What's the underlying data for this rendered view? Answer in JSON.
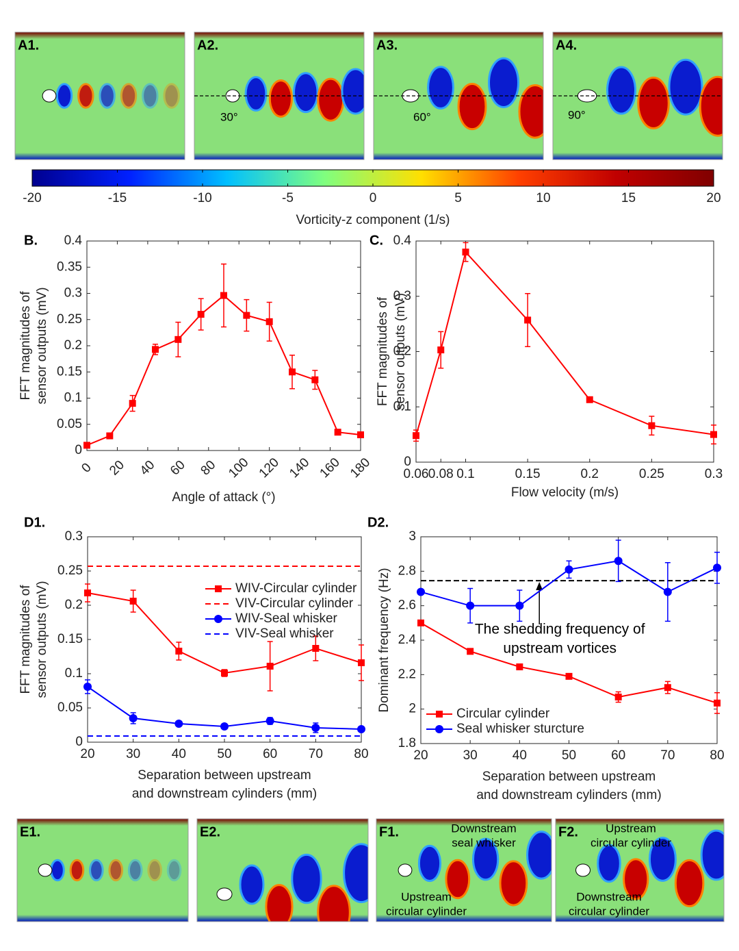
{
  "chart_data": [
    {
      "type": "colorbar",
      "xlim": [
        -20,
        20
      ],
      "xticks": [
        -20,
        -15,
        -10,
        -5,
        0,
        5,
        10,
        15,
        20
      ],
      "xlabel": "Vorticity-z component (1/s)",
      "colors": [
        "#00008f",
        "#0020ff",
        "#00bfff",
        "#7fff7f",
        "#ffdf00",
        "#ff4000",
        "#c00000",
        "#800000"
      ]
    },
    {
      "type": "line",
      "panel": "B.",
      "xlabel": "Angle of attack (°)",
      "ylabel": [
        "FFT magnitudes of",
        "sensor outputs (mV)"
      ],
      "x": [
        0,
        15,
        30,
        45,
        60,
        75,
        90,
        105,
        120,
        135,
        150,
        165,
        180
      ],
      "series": [
        {
          "color": "#ff0000",
          "marker": "square",
          "values": [
            0.01,
            0.028,
            0.09,
            0.193,
            0.212,
            0.26,
            0.296,
            0.258,
            0.246,
            0.15,
            0.135,
            0.035,
            0.03
          ],
          "errors": [
            0.003,
            0.005,
            0.015,
            0.01,
            0.033,
            0.03,
            0.06,
            0.03,
            0.037,
            0.032,
            0.018,
            0.003,
            0.003
          ]
        }
      ],
      "xlim": [
        0,
        180
      ],
      "xticks": [
        0,
        20,
        40,
        60,
        80,
        100,
        120,
        140,
        160,
        180
      ],
      "xtick_rotation": true,
      "ylim": [
        0,
        0.4
      ],
      "yticks": [
        0,
        0.05,
        0.1,
        0.15,
        0.2,
        0.25,
        0.3,
        0.35,
        0.4
      ]
    },
    {
      "type": "line",
      "panel": "C.",
      "xlabel": "Flow velocity (m/s)",
      "ylabel": [
        "FFT magnitudes of",
        "sensor outputs (mV)"
      ],
      "x": [
        0.06,
        0.08,
        0.1,
        0.15,
        0.2,
        0.25,
        0.3
      ],
      "series": [
        {
          "color": "#ff0000",
          "marker": "square",
          "values": [
            0.048,
            0.203,
            0.38,
            0.257,
            0.113,
            0.066,
            0.05
          ],
          "errors": [
            0.01,
            0.033,
            0.017,
            0.048,
            0.003,
            0.017,
            0.017
          ]
        }
      ],
      "xlim": [
        0.06,
        0.3
      ],
      "xticks": [
        0.06,
        0.08,
        0.1,
        0.15,
        0.2,
        0.25,
        0.3
      ],
      "ylim": [
        0,
        0.4
      ],
      "yticks": [
        0,
        0.1,
        0.2,
        0.3,
        0.4
      ]
    },
    {
      "type": "line",
      "panel": "D1.",
      "xlabel": [
        "Separation between upstream",
        "and downstream cylinders (mm)"
      ],
      "ylabel": [
        "FFT magnitudes of",
        "sensor outputs (mV)"
      ],
      "x": [
        20,
        30,
        40,
        50,
        60,
        70,
        80
      ],
      "series": [
        {
          "name": "WIV-Circular cylinder",
          "color": "#ff0000",
          "marker": "square",
          "values": [
            0.218,
            0.206,
            0.133,
            0.101,
            0.111,
            0.137,
            0.116
          ],
          "errors": [
            0.013,
            0.016,
            0.013,
            0.005,
            0.036,
            0.018,
            0.026
          ]
        },
        {
          "name": "VIV-Circular cylinder",
          "color": "#ff0000",
          "dashed": true,
          "y": 0.257
        },
        {
          "name": "WIV-Seal whisker",
          "color": "#0000ff",
          "marker": "circle",
          "values": [
            0.081,
            0.035,
            0.027,
            0.023,
            0.031,
            0.021,
            0.019
          ],
          "errors": [
            0.01,
            0.008,
            0.003,
            0.003,
            0.005,
            0.007,
            0.003
          ]
        },
        {
          "name": "VIV-Seal whisker",
          "color": "#0000ff",
          "dashed": true,
          "y": 0.009
        }
      ],
      "legend": "upper right",
      "xlim": [
        20,
        80
      ],
      "xticks": [
        20,
        30,
        40,
        50,
        60,
        70,
        80
      ],
      "ylim": [
        0,
        0.3
      ],
      "yticks": [
        0,
        0.05,
        0.1,
        0.15,
        0.2,
        0.25,
        0.3
      ]
    },
    {
      "type": "line",
      "panel": "D2.",
      "xlabel": [
        "Separation between upstream",
        "and downstream cylinders (mm)"
      ],
      "ylabel": [
        "Dominant frequency (Hz)"
      ],
      "x": [
        20,
        30,
        40,
        50,
        60,
        70,
        80
      ],
      "series": [
        {
          "name": "Circular cylinder",
          "color": "#ff0000",
          "marker": "square",
          "values": [
            2.5,
            2.335,
            2.245,
            2.19,
            2.07,
            2.125,
            2.035
          ],
          "errors": [
            0.01,
            0.01,
            0.01,
            0.01,
            0.03,
            0.035,
            0.06
          ]
        },
        {
          "name": "Seal whisker sturcture",
          "color": "#0000ff",
          "marker": "circle",
          "values": [
            2.68,
            2.6,
            2.6,
            2.81,
            2.86,
            2.68,
            2.82
          ],
          "errors": [
            0.01,
            0.1,
            0.09,
            0.05,
            0.12,
            0.17,
            0.09
          ]
        }
      ],
      "reference_line": {
        "y": 2.745,
        "color": "#000000"
      },
      "annotation": [
        "The shedding frequency of",
        "upstream vortices"
      ],
      "legend": "lower left",
      "xlim": [
        20,
        80
      ],
      "xticks": [
        20,
        30,
        40,
        50,
        60,
        70,
        80
      ],
      "ylim": [
        1.8,
        3
      ],
      "yticks": [
        1.8,
        2,
        2.2,
        2.4,
        2.6,
        2.8,
        3
      ]
    }
  ],
  "figure": {
    "panels": [
      {
        "label": "A1.",
        "annotations": []
      },
      {
        "label": "A2.",
        "annotations": [
          {
            "lines": [
              "30°"
            ]
          }
        ]
      },
      {
        "label": "A3.",
        "annotations": [
          {
            "lines": [
              "60°"
            ]
          }
        ]
      },
      {
        "label": "A4.",
        "annotations": [
          {
            "lines": [
              "90°"
            ]
          }
        ]
      },
      {
        "label": "E1.",
        "annotations": []
      },
      {
        "label": "E2.",
        "annotations": []
      },
      {
        "label": "F1.",
        "annotations": [
          {
            "lines": [
              "Downstream",
              "seal whisker"
            ]
          },
          {
            "lines": [
              "Upstream",
              "circular cylinder"
            ]
          }
        ]
      },
      {
        "label": "F2.",
        "annotations": [
          {
            "lines": [
              "Upstream",
              "circular cylinder"
            ]
          },
          {
            "lines": [
              "Downstream",
              "circular cylinder"
            ]
          }
        ]
      }
    ]
  }
}
